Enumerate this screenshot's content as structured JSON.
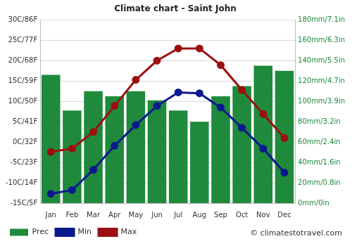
{
  "chart_data": {
    "type": "bar",
    "title": "Climate chart - Saint John",
    "categories": [
      "Jan",
      "Feb",
      "Mar",
      "Apr",
      "May",
      "Jun",
      "Jul",
      "Aug",
      "Sep",
      "Oct",
      "Nov",
      "Dec"
    ],
    "series": [
      {
        "name": "Prec",
        "type": "bar",
        "color": "#1f8a3c",
        "axis": "y2",
        "values": [
          126,
          91,
          110,
          105,
          110,
          101,
          91,
          80,
          105,
          115,
          135,
          130
        ]
      },
      {
        "name": "Min",
        "type": "line",
        "color": "#0a1a8c",
        "marker": "circle",
        "values": [
          -12.7,
          -11.8,
          -6.8,
          -0.9,
          4.2,
          8.9,
          12.2,
          12.0,
          8.5,
          3.5,
          -1.6,
          -7.5
        ]
      },
      {
        "name": "Max",
        "type": "line",
        "color": "#9b1010",
        "marker": "circle",
        "values": [
          -2.4,
          -1.6,
          2.5,
          8.9,
          15.3,
          20.0,
          23.0,
          23.0,
          18.9,
          12.8,
          6.9,
          1.0
        ]
      }
    ],
    "ylim": [
      -15,
      30
    ],
    "yticks": [
      {
        "value": -15,
        "label": "-15C/5F"
      },
      {
        "value": -10,
        "label": "-10C/14F"
      },
      {
        "value": -5,
        "label": "-5C/23F"
      },
      {
        "value": 0,
        "label": "0C/32F"
      },
      {
        "value": 5,
        "label": "5C/41F"
      },
      {
        "value": 10,
        "label": "10C/50F"
      },
      {
        "value": 15,
        "label": "15C/59F"
      },
      {
        "value": 20,
        "label": "20C/68F"
      },
      {
        "value": 25,
        "label": "25C/77F"
      },
      {
        "value": 30,
        "label": "30C/86F"
      }
    ],
    "y2lim": [
      0,
      180
    ],
    "y2ticks": [
      {
        "value": 0,
        "label": "0mm/0in"
      },
      {
        "value": 20,
        "label": "20mm/0.8in"
      },
      {
        "value": 40,
        "label": "40mm/1.6in"
      },
      {
        "value": 60,
        "label": "60mm/2.4in"
      },
      {
        "value": 80,
        "label": "80mm/3.2in"
      },
      {
        "value": 100,
        "label": "100mm/3.9in"
      },
      {
        "value": 120,
        "label": "120mm/4.7in"
      },
      {
        "value": 140,
        "label": "140mm/5.5in"
      },
      {
        "value": 160,
        "label": "160mm/6.3in"
      },
      {
        "value": 180,
        "label": "180mm/7.1in"
      }
    ],
    "grid": true,
    "legend": "bottom-left",
    "annotations": [
      "© climatestotravel.com"
    ]
  }
}
